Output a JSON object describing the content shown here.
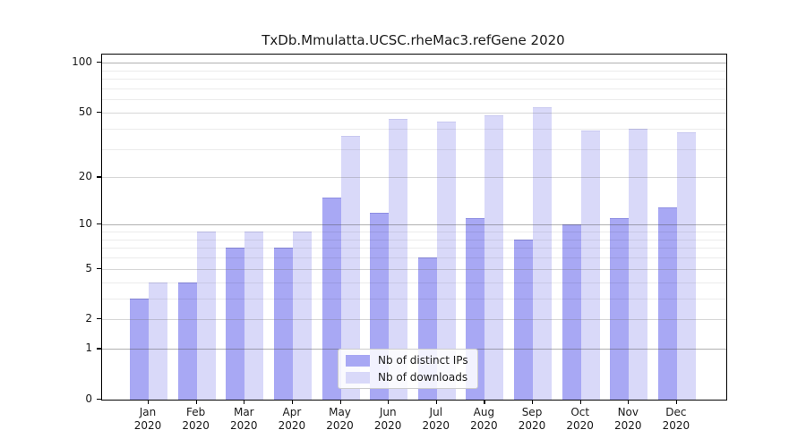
{
  "title": "TxDb.Mmulatta.UCSC.rheMac3.refGene 2020",
  "colors": {
    "distinct_ips": "#a8a8f4",
    "distinct_ips_edge": "#8d8de2",
    "downloads": "#d9d9f9",
    "downloads_edge": "#c8c8f0",
    "axis": "#000000",
    "tick_text": "#1a1a1a",
    "grid_decade": "rgba(80,80,80,0.45)",
    "grid_mid": "rgba(110,110,110,0.28)",
    "grid_minor": "rgba(0,0,0,0.08)"
  },
  "legend": {
    "items": [
      {
        "label": "Nb of distinct IPs",
        "color_key": "distinct_ips"
      },
      {
        "label": "Nb of downloads",
        "color_key": "downloads"
      }
    ]
  },
  "chart_data": {
    "type": "bar",
    "title": "TxDb.Mmulatta.UCSC.rheMac3.refGene 2020",
    "categories": [
      "Jan 2020",
      "Feb 2020",
      "Mar 2020",
      "Apr 2020",
      "May 2020",
      "Jun 2020",
      "Jul 2020",
      "Aug 2020",
      "Sep 2020",
      "Oct 2020",
      "Nov 2020",
      "Dec 2020"
    ],
    "series": [
      {
        "name": "Nb of distinct IPs",
        "values": [
          3,
          4,
          7,
          7,
          15,
          12,
          6,
          11,
          8,
          10,
          11,
          13
        ]
      },
      {
        "name": "Nb of downloads",
        "values": [
          4,
          9,
          9,
          9,
          36,
          46,
          44,
          48,
          54,
          39,
          40,
          38
        ]
      }
    ],
    "xlabel": "",
    "ylabel": "",
    "yscale": "log10(1+y)",
    "ylim": [
      0,
      110
    ],
    "grid": true,
    "legend_position": "lower center",
    "y_axis": {
      "ticks": [
        "100",
        "50",
        "20",
        "10",
        "5",
        "2",
        "1",
        "0"
      ],
      "decade_lines": [
        1,
        10,
        100
      ],
      "mid_lines": [
        2,
        5,
        20,
        50
      ],
      "minor_lines": [
        3,
        4,
        6,
        7,
        8,
        9,
        30,
        40,
        60,
        70,
        80,
        90
      ]
    }
  }
}
